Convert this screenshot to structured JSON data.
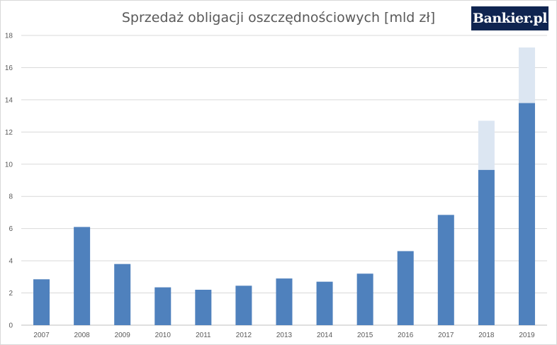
{
  "logo": {
    "text": "Bankier.pl"
  },
  "chart_data": {
    "type": "bar",
    "title": "Sprzedaż obligacji oszczędnościowych [mld zł]",
    "categories": [
      "2007",
      "2008",
      "2009",
      "2010",
      "2011",
      "2012",
      "2013",
      "2014",
      "2015",
      "2016",
      "2017",
      "2018",
      "2019"
    ],
    "series": [
      {
        "values": [
          2.85,
          6.1,
          3.8,
          2.35,
          2.2,
          2.45,
          2.9,
          2.7,
          3.2,
          4.6,
          6.85,
          9.65,
          13.8
        ],
        "color": "#4f81bd"
      },
      {
        "values": [
          0,
          0,
          0,
          0,
          0,
          0,
          0,
          0,
          0,
          0,
          0,
          3.05,
          3.45
        ],
        "color": "#dce6f2"
      }
    ],
    "stacked": true,
    "ylim": [
      0,
      18
    ],
    "yticks": [
      0,
      2,
      4,
      6,
      8,
      10,
      12,
      14,
      16,
      18
    ],
    "grid": true,
    "legend": "none",
    "colors": {
      "gridline": "#d9d9d9",
      "axis": "#bfbfbf"
    }
  }
}
